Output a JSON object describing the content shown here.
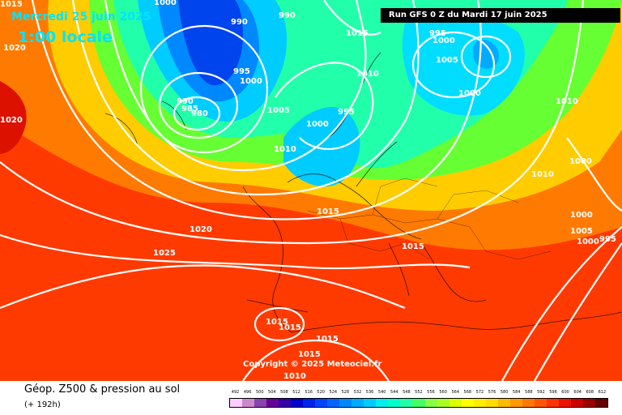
{
  "header": {
    "date": "Mercredi 25 juin 2025",
    "time": "1:00 locale",
    "run": "Run GFS 0 Z du Mardi 17 juin 2025"
  },
  "copyright": "Copyright © 2025 Meteociel.fr",
  "footer": {
    "title": "Géop. Z500 & pression au sol",
    "subtitle": "(+ 192h)"
  },
  "legend": {
    "values": [
      "492",
      "496",
      "500",
      "504",
      "508",
      "512",
      "516",
      "520",
      "524",
      "528",
      "532",
      "536",
      "540",
      "544",
      "548",
      "552",
      "556",
      "560",
      "564",
      "568",
      "572",
      "576",
      "580",
      "584",
      "588",
      "592",
      "596",
      "600",
      "604",
      "608",
      "612"
    ],
    "colors": [
      "#ffccff",
      "#cc88cc",
      "#8844aa",
      "#660099",
      "#3300aa",
      "#0000cc",
      "#0022ee",
      "#0044ff",
      "#0066ff",
      "#0088ff",
      "#00aaff",
      "#00ccff",
      "#00eeee",
      "#00ffcc",
      "#22ffaa",
      "#44ff66",
      "#88ff44",
      "#aaff22",
      "#ddff00",
      "#ffff00",
      "#ffee00",
      "#ffdd00",
      "#ffbb00",
      "#ff9900",
      "#ff7700",
      "#ff5500",
      "#ff3300",
      "#ee1100",
      "#cc0000",
      "#990000",
      "#660000"
    ]
  },
  "isobars": [
    {
      "label": "1000"
    },
    {
      "label": "990"
    },
    {
      "label": "990"
    },
    {
      "label": "995"
    },
    {
      "label": "1000"
    },
    {
      "label": "990"
    },
    {
      "label": "985"
    },
    {
      "label": "980"
    },
    {
      "label": "1005"
    },
    {
      "label": "1010"
    },
    {
      "label": "1000"
    },
    {
      "label": "995"
    },
    {
      "label": "1015"
    },
    {
      "label": "1010"
    },
    {
      "label": "995"
    },
    {
      "label": "1000"
    },
    {
      "label": "1005"
    },
    {
      "label": "1000"
    },
    {
      "label": "1015"
    },
    {
      "label": "1010"
    },
    {
      "label": "1000"
    },
    {
      "label": "1010"
    },
    {
      "label": "1000"
    },
    {
      "label": "1005"
    },
    {
      "label": "995"
    },
    {
      "label": "1000"
    },
    {
      "label": "1015"
    },
    {
      "label": "1020"
    },
    {
      "label": "1025"
    },
    {
      "label": "1020"
    },
    {
      "label": "1020"
    },
    {
      "label": "1015"
    },
    {
      "label": "1015"
    },
    {
      "label": "1015"
    },
    {
      "label": "1015"
    },
    {
      "label": "1010"
    },
    {
      "label": "1015"
    }
  ]
}
